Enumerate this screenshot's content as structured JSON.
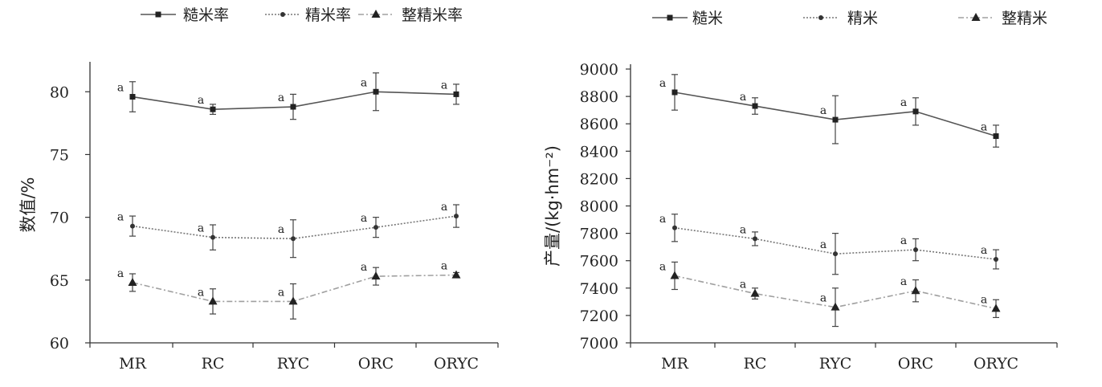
{
  "chart_data": [
    {
      "type": "line",
      "title": "",
      "xlabel": "",
      "ylabel": "数值/%",
      "ylim": [
        60,
        82
      ],
      "yticks": [
        60,
        65,
        70,
        75,
        80
      ],
      "categories": [
        "MR",
        "RC",
        "RYC",
        "ORC",
        "ORYC"
      ],
      "legend_position": "top",
      "series": [
        {
          "name": "糙米率",
          "marker": "square",
          "line": "solid",
          "color": "#555555",
          "values": [
            79.6,
            78.6,
            78.8,
            80.0,
            79.8
          ],
          "errors": [
            1.2,
            0.4,
            1.0,
            1.5,
            0.8
          ],
          "labels": [
            "a",
            "a",
            "a",
            "a",
            "a"
          ]
        },
        {
          "name": "精米率",
          "marker": "circle",
          "line": "dotted",
          "color": "#777777",
          "values": [
            69.3,
            68.4,
            68.3,
            69.2,
            70.1
          ],
          "errors": [
            0.8,
            1.0,
            1.5,
            0.8,
            0.9
          ],
          "labels": [
            "a",
            "a",
            "a",
            "a",
            "a"
          ]
        },
        {
          "name": "整精米率",
          "marker": "triangle",
          "line": "dashdot",
          "color": "#a0a0a0",
          "values": [
            64.8,
            63.3,
            63.3,
            65.3,
            65.4
          ],
          "errors": [
            0.7,
            1.0,
            1.4,
            0.7,
            0.2
          ],
          "labels": [
            "a",
            "a",
            "a",
            "a",
            "a"
          ]
        }
      ]
    },
    {
      "type": "line",
      "title": "",
      "xlabel": "",
      "ylabel": "产量/(kg·hm⁻²)",
      "ylim": [
        7000,
        9000
      ],
      "yticks": [
        7000,
        7200,
        7400,
        7600,
        7800,
        8000,
        8200,
        8400,
        8600,
        8800,
        9000
      ],
      "categories": [
        "MR",
        "RC",
        "RYC",
        "ORC",
        "ORYC"
      ],
      "legend_position": "top",
      "series": [
        {
          "name": "糙米",
          "marker": "square",
          "line": "solid",
          "color": "#555555",
          "values": [
            8830,
            8730,
            8630,
            8690,
            8510
          ],
          "errors": [
            130,
            60,
            175,
            100,
            80
          ],
          "labels": [
            "a",
            "a",
            "a",
            "a",
            "a"
          ]
        },
        {
          "name": "精米",
          "marker": "circle",
          "line": "dotted",
          "color": "#777777",
          "values": [
            7840,
            7760,
            7650,
            7680,
            7610
          ],
          "errors": [
            100,
            50,
            150,
            80,
            70
          ],
          "labels": [
            "a",
            "a",
            "a",
            "a",
            "a"
          ]
        },
        {
          "name": "整精米",
          "marker": "triangle",
          "line": "dashdot",
          "color": "#a0a0a0",
          "values": [
            7490,
            7360,
            7260,
            7380,
            7250
          ],
          "errors": [
            100,
            40,
            140,
            80,
            65
          ],
          "labels": [
            "a",
            "a",
            "a",
            "a",
            "a"
          ]
        }
      ]
    }
  ]
}
